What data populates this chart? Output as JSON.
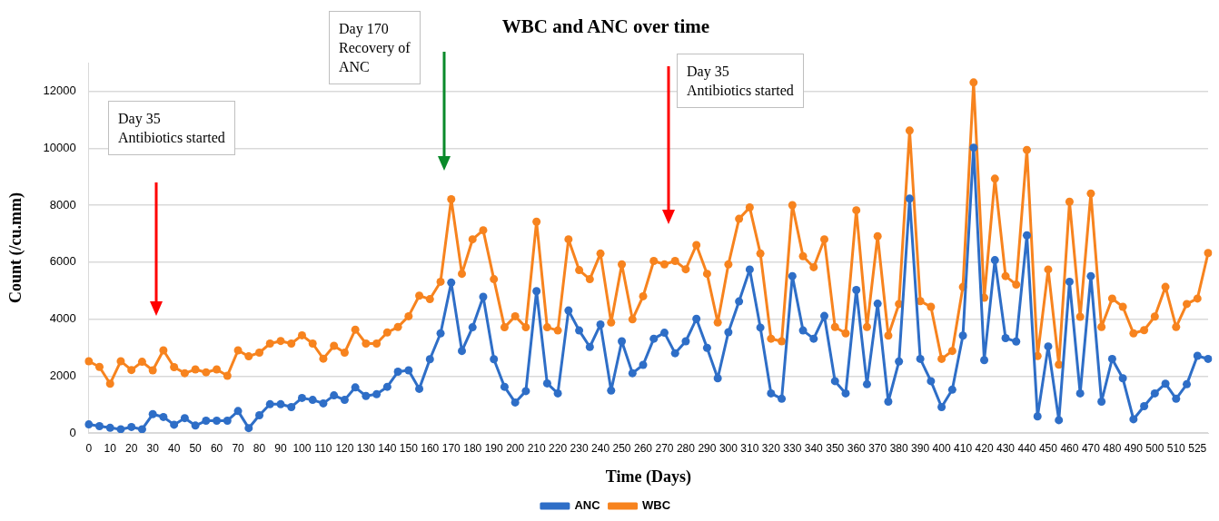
{
  "chart_data": {
    "type": "line",
    "title": "WBC and ANC over time",
    "xlabel": "Time (Days)",
    "ylabel": "Count (/cu.mm)",
    "categories": [
      "0",
      null,
      "10",
      null,
      "20",
      null,
      "30",
      null,
      "40",
      null,
      "50",
      null,
      "60",
      null,
      "70",
      null,
      "80",
      null,
      "90",
      null,
      "100",
      null,
      "110",
      null,
      "120",
      null,
      "130",
      null,
      "140",
      null,
      "150",
      null,
      "160",
      null,
      "170",
      null,
      "180",
      null,
      "190",
      null,
      "200",
      null,
      "210",
      null,
      "220",
      null,
      "230",
      null,
      "240",
      null,
      "250",
      null,
      "260",
      null,
      "270",
      null,
      "280",
      null,
      "290",
      null,
      "300",
      null,
      "310",
      null,
      "320",
      null,
      "330",
      null,
      "340",
      null,
      "350",
      null,
      "360",
      null,
      "370",
      null,
      "380",
      null,
      "390",
      null,
      "400",
      null,
      "410",
      null,
      "420",
      null,
      "430",
      null,
      "440",
      null,
      "450",
      null,
      "460",
      null,
      "470",
      null,
      "480",
      null,
      "490",
      null,
      "500",
      null,
      "510",
      null,
      "525",
      null
    ],
    "series": [
      {
        "name": "ANC",
        "color": "#2e6ec7",
        "values": [
          300,
          240,
          180,
          130,
          210,
          130,
          660,
          560,
          290,
          520,
          260,
          430,
          430,
          430,
          770,
          170,
          620,
          1010,
          1010,
          910,
          1230,
          1160,
          1040,
          1320,
          1160,
          1600,
          1300,
          1360,
          1620,
          2150,
          2200,
          1550,
          2590,
          3500,
          5280,
          2880,
          3710,
          4780,
          2590,
          1620,
          1070,
          1470,
          4980,
          1740,
          1390,
          4300,
          3600,
          3020,
          3810,
          1490,
          3220,
          2100,
          2390,
          3310,
          3520,
          2800,
          3220,
          4010,
          2990,
          1920,
          3540,
          4620,
          5740,
          3700,
          1390,
          1200,
          5510,
          3600,
          3310,
          4110,
          1820,
          1390,
          5020,
          1710,
          4540,
          1100,
          2510,
          8230,
          2600,
          1820,
          910,
          1520,
          3420,
          10020,
          2560,
          6070,
          3330,
          3210,
          6940,
          580,
          3040,
          450,
          5310,
          1390,
          5510,
          1100,
          2600,
          1920,
          480,
          940,
          1390,
          1730,
          1200,
          1710,
          2710,
          2600
        ]
      },
      {
        "name": "WBC",
        "color": "#f7831e",
        "values": [
          2520,
          2320,
          1730,
          2520,
          2210,
          2500,
          2200,
          2900,
          2310,
          2100,
          2230,
          2130,
          2230,
          2010,
          2900,
          2690,
          2820,
          3140,
          3230,
          3140,
          3430,
          3140,
          2610,
          3060,
          2820,
          3630,
          3140,
          3140,
          3530,
          3720,
          4100,
          4820,
          4700,
          5310,
          8210,
          5590,
          6800,
          7120,
          5400,
          3710,
          4100,
          3710,
          7420,
          3710,
          3600,
          6800,
          5720,
          5400,
          6300,
          3880,
          5920,
          3990,
          4800,
          6040,
          5920,
          6040,
          5750,
          6600,
          5590,
          3880,
          5920,
          7520,
          7920,
          6300,
          3310,
          3220,
          8000,
          6210,
          5820,
          6800,
          3720,
          3500,
          7820,
          3720,
          6910,
          3420,
          4530,
          10620,
          4630,
          4430,
          2600,
          2880,
          5130,
          12310,
          4750,
          8930,
          5510,
          5210,
          9940,
          2700,
          5740,
          2400,
          8120,
          4080,
          8410,
          3720,
          4720,
          4430,
          3500,
          3610,
          4090,
          5130,
          3720,
          4530,
          4720,
          6320
        ]
      }
    ],
    "ylim": [
      0,
      13000
    ],
    "yticks": [
      0,
      2000,
      4000,
      6000,
      8000,
      10000,
      12000
    ],
    "grid": "y",
    "legend": "bottom",
    "marker": "circle",
    "line_style": "solid",
    "annotations": [
      "Day 35\nAntibiotics started",
      "Day 170\nRecovery of\nANC",
      "Day 35\nAntibiotics started"
    ]
  }
}
